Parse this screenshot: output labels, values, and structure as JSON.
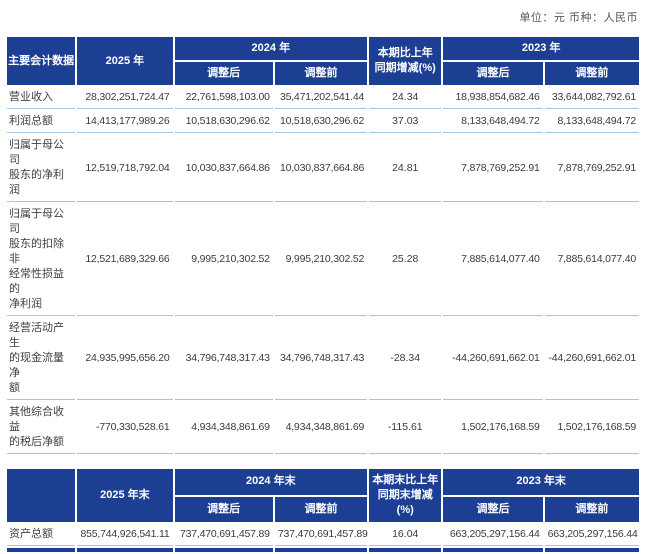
{
  "meta": {
    "unit_note": "单位：元 币种：人民币"
  },
  "colors": {
    "header_bg": "#1c3f94",
    "row_divider": "#a9c4de",
    "note_text": "#595959",
    "body_text": "#3a3a3a"
  },
  "table1": {
    "headers": {
      "main": "主要会计数据",
      "y2025": "2025 年",
      "y2024": "2024 年",
      "change": "本期比上年\n同期增减(%)",
      "y2023": "2023 年",
      "adj_after_2024": "调整后",
      "adj_before_2024": "调整前",
      "adj_after_2023": "调整后",
      "adj_before_2023": "调整前"
    },
    "rows": [
      {
        "label": "营业收入",
        "y2025": "28,302,251,724.47",
        "y2024_after": "22,761,598,103.00",
        "y2024_before": "35,471,202,541.44",
        "change": "24.34",
        "y2023_after": "18,938,854,682.46",
        "y2023_before": "33,644,082,792.61"
      },
      {
        "label": "利润总额",
        "y2025": "14,413,177,989.26",
        "y2024_after": "10,518,630,296.62",
        "y2024_before": "10,518,630,296.62",
        "change": "37.03",
        "y2023_after": "8,133,648,494.72",
        "y2023_before": "8,133,648,494.72"
      },
      {
        "label": "归属于母公司\n股东的净利润",
        "y2025": "12,519,718,792.04",
        "y2024_after": "10,030,837,664.86",
        "y2024_before": "10,030,837,664.86",
        "change": "24.81",
        "y2023_after": "7,878,769,252.91",
        "y2023_before": "7,878,769,252.91"
      },
      {
        "label": "归属于母公司\n股东的扣除非\n经常性损益的\n净利润",
        "y2025": "12,521,689,329.66",
        "y2024_after": "9,995,210,302.52",
        "y2024_before": "9,995,210,302.52",
        "change": "25.28",
        "y2023_after": "7,885,614,077.40",
        "y2023_before": "7,885,614,077.40"
      },
      {
        "label": "经营活动产生\n的现金流量净\n额",
        "y2025": "24,935,995,656.20",
        "y2024_after": "34,796,748,317.43",
        "y2024_before": "34,796,748,317.43",
        "change": "-28.34",
        "y2023_after": "-44,260,691,662.01",
        "y2023_before": "-44,260,691,662.01"
      },
      {
        "label": "其他综合收益\n的税后净额",
        "y2025": "-770,330,528.61",
        "y2024_after": "4,934,348,861.69",
        "y2024_before": "4,934,348,861.69",
        "change": "-115.61",
        "y2023_after": "1,502,176,168.59",
        "y2023_before": "1,502,176,168.59"
      }
    ]
  },
  "table2": {
    "headers": {
      "main": "",
      "y2025": "2025 年末",
      "y2024": "2024 年末",
      "change": "本期末比上年\n同期末增减(%)",
      "y2023": "2023 年末",
      "adj_after_2024": "调整后",
      "adj_before_2024": "调整前",
      "adj_after_2023": "调整后",
      "adj_before_2023": "调整前"
    },
    "rows": [
      {
        "label": "资产总额",
        "y2025": "855,744,926,541.11",
        "y2024_after": "737,470,691,457.89",
        "y2024_before": "737,470,691,457.89",
        "change": "16.04",
        "y2023_after": "663,205,297,156.44",
        "y2023_before": "663,205,297,156.44"
      }
    ]
  }
}
